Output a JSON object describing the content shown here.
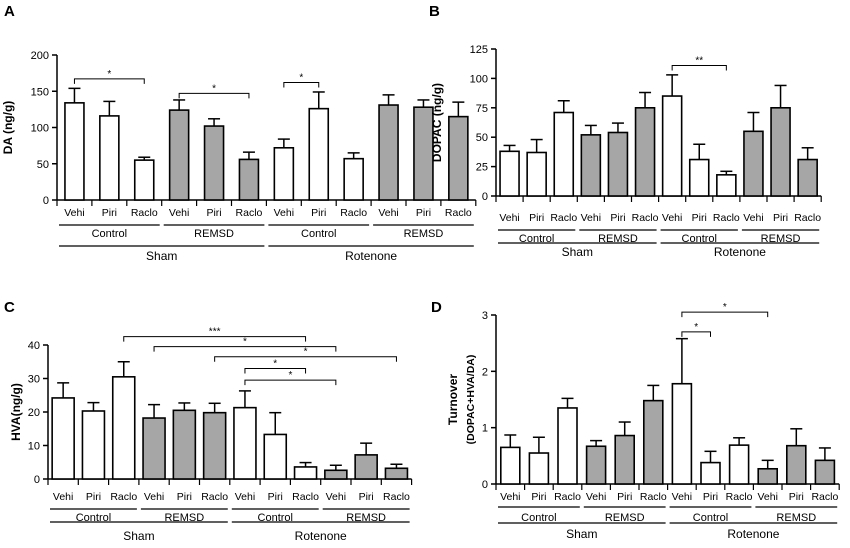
{
  "colors": {
    "white_bar": "#ffffff",
    "gray_bar": "#a6a6a6",
    "axis": "#000000"
  },
  "chart_data": [
    {
      "panel": "A",
      "type": "bar",
      "ylabel": "DA (ng/g)",
      "ylim": [
        0,
        200
      ],
      "yticks": [
        0,
        50,
        100,
        150,
        200
      ],
      "categories": [
        "Vehi",
        "Piri",
        "Raclo",
        "Vehi",
        "Piri",
        "Raclo",
        "Vehi",
        "Piri",
        "Raclo",
        "Vehi",
        "Piri",
        "Raclo"
      ],
      "values": [
        134,
        116,
        55,
        124,
        102,
        56,
        72,
        126,
        57,
        131,
        128,
        115
      ],
      "errors": [
        20,
        20,
        4,
        14,
        10,
        10,
        12,
        23,
        8,
        14,
        10,
        20
      ],
      "fills": [
        "white",
        "white",
        "white",
        "gray",
        "gray",
        "gray",
        "white",
        "white",
        "white",
        "gray",
        "gray",
        "gray"
      ],
      "subgroups": [
        "Control",
        "REMSD",
        "Control",
        "REMSD"
      ],
      "groups": [
        "Sham",
        "Rotenone"
      ],
      "significance": [
        {
          "from": 0,
          "to": 2,
          "label": "*",
          "y": 167
        },
        {
          "from": 3,
          "to": 5,
          "label": "*",
          "y": 147
        },
        {
          "from": 6,
          "to": 7,
          "label": "*",
          "y": 162
        }
      ]
    },
    {
      "panel": "B",
      "type": "bar",
      "ylabel": "DOPAC (ng/g)",
      "ylim": [
        0,
        125
      ],
      "yticks": [
        0,
        25,
        50,
        75,
        100,
        125
      ],
      "categories": [
        "Vehi",
        "Piri",
        "Raclo",
        "Vehi",
        "Piri",
        "Raclo",
        "Vehi",
        "Piri",
        "Raclo",
        "Vehi",
        "Piri",
        "Raclo"
      ],
      "values": [
        38,
        37,
        71,
        52,
        54,
        75,
        85,
        31,
        18,
        55,
        75,
        31
      ],
      "errors": [
        5,
        11,
        10,
        8,
        8,
        13,
        18,
        13,
        3,
        16,
        19,
        10
      ],
      "fills": [
        "white",
        "white",
        "white",
        "gray",
        "gray",
        "gray",
        "white",
        "white",
        "white",
        "gray",
        "gray",
        "gray"
      ],
      "subgroups": [
        "Control",
        "REMSD",
        "Control",
        "REMSD"
      ],
      "groups": [
        "Sham",
        "Rotenone"
      ],
      "significance": [
        {
          "from": 6,
          "to": 8,
          "label": "**",
          "y": 111
        }
      ]
    },
    {
      "panel": "C",
      "type": "bar",
      "ylabel": "HVA(ng/g)",
      "ylim": [
        0,
        40
      ],
      "yticks": [
        0,
        10,
        20,
        30,
        40
      ],
      "categories": [
        "Vehi",
        "Piri",
        "Raclo",
        "Vehi",
        "Piri",
        "Raclo",
        "Vehi",
        "Piri",
        "Raclo",
        "Vehi",
        "Piri",
        "Raclo"
      ],
      "values": [
        24.2,
        20.3,
        30.5,
        18.2,
        20.5,
        19.8,
        21.3,
        13.3,
        3.6,
        2.6,
        7.2,
        3.2
      ],
      "errors": [
        4.5,
        2.5,
        4.5,
        4,
        2.2,
        2.8,
        5,
        6.5,
        1.3,
        1.5,
        3.5,
        1.2
      ],
      "fills": [
        "white",
        "white",
        "white",
        "gray",
        "gray",
        "gray",
        "white",
        "white",
        "white",
        "gray",
        "gray",
        "gray"
      ],
      "subgroups": [
        "Control",
        "REMSD",
        "Control",
        "REMSD"
      ],
      "groups": [
        "Sham",
        "Rotenone"
      ],
      "significance": [
        {
          "from": 2,
          "to": 8,
          "label": "***",
          "y": 42.5
        },
        {
          "from": 3,
          "to": 9,
          "label": "*",
          "y": 39.5
        },
        {
          "from": 5,
          "to": 11,
          "label": "*",
          "y": 36.5
        },
        {
          "from": 6,
          "to": 8,
          "label": "*",
          "y": 33
        },
        {
          "from": 6,
          "to": 9,
          "label": "*",
          "y": 29.5
        }
      ]
    },
    {
      "panel": "D",
      "type": "bar",
      "ylabel": "Turnover",
      "ylabel2": "(DOPAC+HVA/DA)",
      "ylim": [
        0,
        3
      ],
      "yticks": [
        0,
        1,
        2,
        3
      ],
      "categories": [
        "Vehi",
        "Piri",
        "Raclo",
        "Vehi",
        "Piri",
        "Raclo",
        "Vehi",
        "Piri",
        "Raclo",
        "Vehi",
        "Piri",
        "Raclo"
      ],
      "values": [
        0.65,
        0.55,
        1.35,
        0.67,
        0.86,
        1.48,
        1.78,
        0.38,
        0.69,
        0.27,
        0.68,
        0.42
      ],
      "errors": [
        0.22,
        0.28,
        0.17,
        0.1,
        0.24,
        0.27,
        0.8,
        0.2,
        0.13,
        0.15,
        0.3,
        0.22
      ],
      "fills": [
        "white",
        "white",
        "white",
        "gray",
        "gray",
        "gray",
        "white",
        "white",
        "white",
        "gray",
        "gray",
        "gray"
      ],
      "subgroups": [
        "Control",
        "REMSD",
        "Control",
        "REMSD"
      ],
      "groups": [
        "Sham",
        "Rotenone"
      ],
      "significance": [
        {
          "from": 6,
          "to": 9,
          "label": "*",
          "y": 3.05
        },
        {
          "from": 6,
          "to": 7,
          "label": "*",
          "y": 2.7
        }
      ]
    }
  ]
}
